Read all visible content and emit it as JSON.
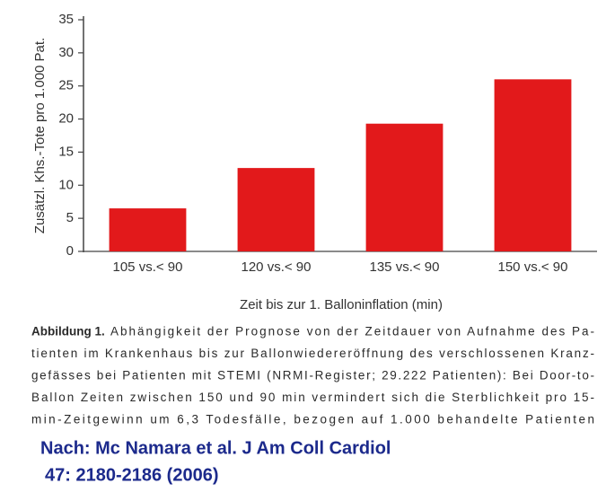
{
  "chart_data": {
    "type": "bar",
    "categories": [
      "105 vs.< 90",
      "120 vs.< 90",
      "135 vs.< 90",
      "150 vs.< 90"
    ],
    "values": [
      6.5,
      12.6,
      19.3,
      26
    ],
    "color": "#e2191b",
    "ylim": [
      0,
      35
    ],
    "yticks": [
      0,
      5,
      10,
      15,
      20,
      25,
      30,
      35
    ],
    "y_label": "Zusätzl. Khs.-Tote pro 1.000 Pat.",
    "x_label": "Zeit bis zur 1. Balloninflation (min)"
  },
  "caption": {
    "label": "Abbildung 1.",
    "lines": [
      "Abhängigkeit der Prognose von der Zeitdauer von Aufnahme des Pa-",
      "tienten im Krankenhaus bis zur Ballonwiedereröffnung des verschlossenen Kranz-",
      "gefässes bei Patienten mit STEMI (NRMI-Register; 29.222 Patienten): Bei Door-to-",
      "Ballon Zeiten zwischen 150 und 90 min vermindert sich die Sterblichkeit pro 15-",
      "min-Zeitgewinn um 6,3 Todesfälle, bezogen auf 1.000 behandelte Patienten"
    ]
  },
  "source": [
    "Nach: Mc Namara et al. J Am Coll Cardiol",
    "47: 2180-2186 (2006)"
  ]
}
